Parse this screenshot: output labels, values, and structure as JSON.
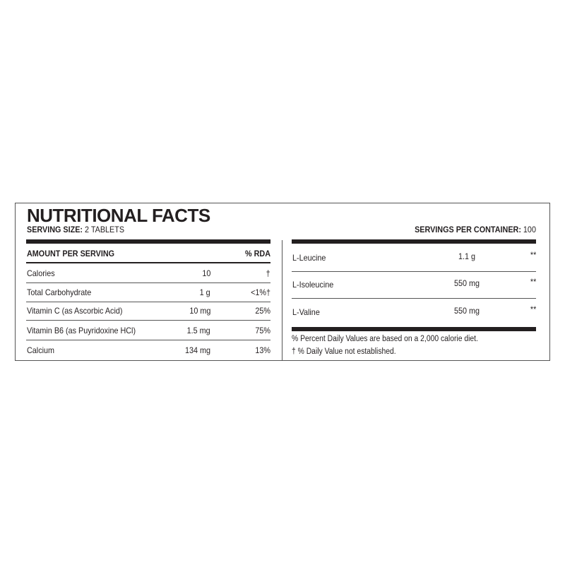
{
  "title": "NUTRITIONAL FACTS",
  "serving_size": {
    "label": "SERVING SIZE:",
    "value": "2 TABLETS"
  },
  "servings_per_container": {
    "label": "SERVINGS PER CONTAINER:",
    "value": "100"
  },
  "table": {
    "header": [
      "AMOUNT PER SERVING",
      "% RDA"
    ],
    "rows": [
      [
        "Calories",
        "10",
        "†"
      ],
      [
        "Total Carbohydrate",
        "1 g",
        "<1%†"
      ],
      [
        "Vitamin C (as Ascorbic Acid)",
        "10 mg",
        "25%"
      ],
      [
        "Vitamin B6 (as Puyridoxine HCl)",
        "1.5 mg",
        "75%"
      ],
      [
        "Calcium",
        "134 mg",
        "13%"
      ]
    ]
  },
  "amino_acids": {
    "rows": [
      [
        "L-Leucine",
        "1.1 g",
        "**"
      ],
      [
        "L-Isoleucine",
        "550 mg",
        "**"
      ],
      [
        "L-Valine",
        "550 mg",
        "**"
      ]
    ]
  },
  "footnotes": [
    "% Percent Daily Values are based on a 2,000 calorie diet.",
    "† % Daily Value not established."
  ]
}
